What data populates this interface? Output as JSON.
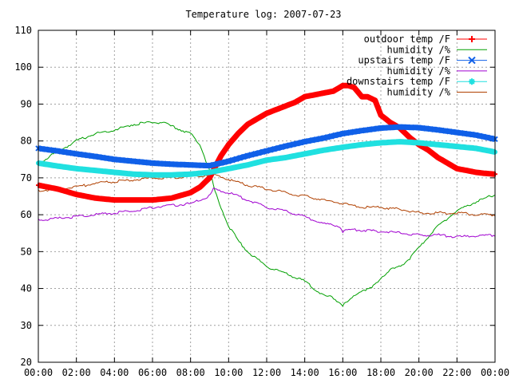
{
  "chart_data": {
    "type": "line",
    "title": "Temperature log: 2007-07-23",
    "xlabel": "",
    "ylabel": "",
    "xlim": [
      0,
      24
    ],
    "ylim": [
      20,
      110
    ],
    "grid": true,
    "legend_position": "top-right",
    "x_ticks": [
      "00:00",
      "02:00",
      "04:00",
      "06:00",
      "08:00",
      "10:00",
      "12:00",
      "14:00",
      "16:00",
      "18:00",
      "20:00",
      "22:00",
      "00:00"
    ],
    "y_ticks": [
      20,
      30,
      40,
      50,
      60,
      70,
      80,
      90,
      100,
      110
    ],
    "series": [
      {
        "name": "outdoor temp /F",
        "color": "#ff0000",
        "marker": "plus",
        "x": [
          0,
          1,
          2,
          3,
          4,
          5,
          6,
          7,
          8,
          8.5,
          9,
          9.3,
          9.6,
          10,
          10.5,
          11,
          11.5,
          12,
          12.5,
          13,
          13.5,
          14,
          14.5,
          15,
          15.5,
          16,
          16.3,
          16.6,
          17,
          17.3,
          17.7,
          18,
          18.5,
          19,
          19.5,
          20,
          20.5,
          21,
          21.5,
          22,
          22.5,
          23,
          23.5,
          24
        ],
        "y": [
          68,
          67,
          65.5,
          64.5,
          64,
          64,
          64,
          64.5,
          66,
          67.5,
          70,
          73,
          76,
          79,
          82,
          84.5,
          86,
          87.5,
          88.5,
          89.5,
          90.5,
          92,
          92.5,
          93,
          93.5,
          95,
          95,
          94.5,
          92,
          92,
          91,
          87,
          85,
          83.5,
          81,
          79,
          77.5,
          75.5,
          74,
          72.5,
          72,
          71.5,
          71.2,
          71
        ]
      },
      {
        "name": "humidity /%",
        "color": "#00a000",
        "marker": "none",
        "x": [
          0,
          1,
          2,
          3,
          4,
          5,
          5.8,
          6.5,
          7,
          8,
          8.5,
          9,
          9.3,
          9.6,
          10,
          10.5,
          11,
          11.5,
          12,
          12.5,
          13,
          13.5,
          14,
          14.5,
          15,
          15.5,
          16,
          16.3,
          16.6,
          17,
          17.5,
          18,
          18.5,
          19,
          19.5,
          20,
          21,
          22,
          23,
          24
        ],
        "y": [
          74,
          77,
          80,
          82,
          83,
          84.5,
          85,
          85,
          84,
          82,
          79,
          72,
          66,
          62,
          57,
          53,
          50,
          48,
          46,
          45,
          44,
          43,
          42,
          40,
          38,
          37.5,
          35.5,
          36.5,
          38,
          39.5,
          40,
          43,
          45,
          46,
          48,
          51,
          57,
          61,
          63.5,
          65.5
        ]
      },
      {
        "name": "upstairs temp /F",
        "color": "#1060e8",
        "marker": "x",
        "x": [
          0,
          1,
          2,
          3,
          4,
          5,
          6,
          7,
          8,
          9,
          10,
          11,
          12,
          13,
          14,
          15,
          16,
          17,
          18,
          19,
          20,
          21,
          22,
          23,
          24
        ],
        "y": [
          78,
          77.3,
          76.5,
          75.8,
          75,
          74.5,
          74,
          73.7,
          73.5,
          73.3,
          74.5,
          76,
          77.3,
          78.6,
          79.8,
          80.8,
          82,
          82.8,
          83.5,
          83.8,
          83.6,
          83,
          82.3,
          81.6,
          80.5
        ]
      },
      {
        "name": "humidity /%",
        "color": "#a000d0",
        "marker": "none",
        "x": [
          0,
          1,
          2,
          3,
          4,
          5,
          6,
          7,
          8,
          8.5,
          9,
          9.2,
          9.5,
          10,
          11,
          12,
          13,
          14,
          15,
          15.8,
          16,
          16.5,
          17,
          18,
          19,
          20,
          21,
          22,
          23,
          24
        ],
        "y": [
          58.5,
          59,
          59.5,
          60,
          60.5,
          61,
          62,
          62.5,
          63,
          64,
          65,
          67,
          66.5,
          66,
          64,
          62,
          61,
          59.5,
          57.5,
          57,
          55.5,
          56,
          55.8,
          55.5,
          55,
          54.5,
          54.5,
          54,
          54.2,
          54.5
        ]
      },
      {
        "name": "downstairs temp /F",
        "color": "#20e0e0",
        "marker": "star",
        "x": [
          0,
          1,
          2,
          3,
          4,
          5,
          6,
          7,
          8,
          9,
          10,
          11,
          12,
          13,
          14,
          15,
          16,
          17,
          18,
          19,
          20,
          21,
          22,
          23,
          24
        ],
        "y": [
          74,
          73.2,
          72.5,
          72,
          71.5,
          71,
          70.8,
          70.8,
          71,
          71.5,
          72.5,
          73.5,
          74.8,
          75.5,
          76.5,
          77.5,
          78.3,
          79,
          79.5,
          79.8,
          79.5,
          79,
          78.5,
          78,
          77
        ]
      },
      {
        "name": "humidity /%",
        "color": "#b04000",
        "marker": "none",
        "x": [
          0,
          1,
          2,
          3,
          4,
          5,
          6,
          7,
          8,
          8.5,
          9,
          9.5,
          10,
          11,
          12,
          13,
          14,
          15,
          16,
          17,
          18,
          19,
          20,
          21,
          22,
          23,
          24
        ],
        "y": [
          66.5,
          67,
          67.5,
          68.5,
          69,
          69.5,
          70,
          70,
          70.5,
          70.5,
          71,
          70.5,
          69.5,
          68,
          67,
          66,
          65,
          64,
          63,
          62,
          62,
          61.5,
          60.5,
          60.5,
          60.5,
          60,
          60
        ]
      }
    ]
  }
}
